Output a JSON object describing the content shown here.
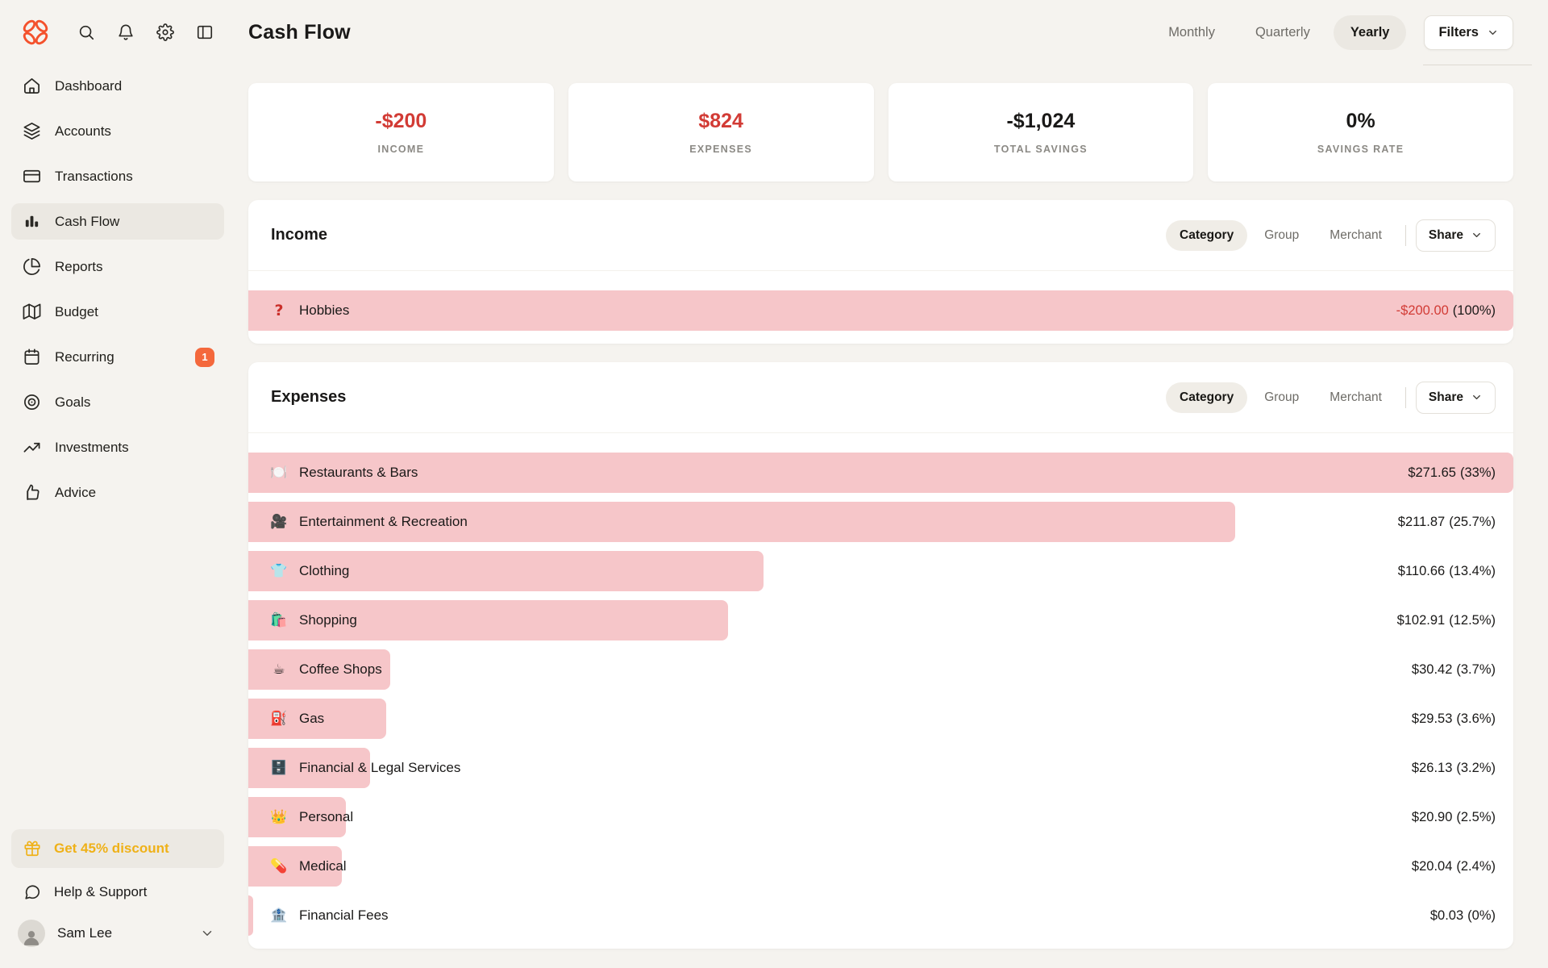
{
  "colors": {
    "accent_orange": "#F4512C",
    "badge_orange": "#F4683C",
    "bar_pink": "#F6C6C9",
    "negative_red": "#D23B35",
    "discount_amber": "#EFB118",
    "page_bg": "#F5F3EF",
    "card_bg": "#FFFFFF"
  },
  "sidebar": {
    "top_icons": [
      {
        "name": "search"
      },
      {
        "name": "bell"
      },
      {
        "name": "gear"
      },
      {
        "name": "layout-panel"
      }
    ],
    "nav": [
      {
        "label": "Dashboard",
        "icon": "home",
        "selected": false
      },
      {
        "label": "Accounts",
        "icon": "layers",
        "selected": false
      },
      {
        "label": "Transactions",
        "icon": "credit-card",
        "selected": false
      },
      {
        "label": "Cash Flow",
        "icon": "bar-chart",
        "selected": true
      },
      {
        "label": "Reports",
        "icon": "pie-chart",
        "selected": false
      },
      {
        "label": "Budget",
        "icon": "map",
        "selected": false
      },
      {
        "label": "Recurring",
        "icon": "calendar",
        "selected": false,
        "badge": "1"
      },
      {
        "label": "Goals",
        "icon": "target",
        "selected": false
      },
      {
        "label": "Investments",
        "icon": "trending-up",
        "selected": false
      },
      {
        "label": "Advice",
        "icon": "thumbs-up",
        "selected": false
      }
    ],
    "discount_label": "Get 45% discount",
    "help_label": "Help & Support",
    "user_name": "Sam Lee"
  },
  "header": {
    "title": "Cash Flow",
    "periods": [
      {
        "label": "Monthly",
        "selected": false
      },
      {
        "label": "Quarterly",
        "selected": false
      },
      {
        "label": "Yearly",
        "selected": true
      }
    ],
    "filters_label": "Filters"
  },
  "summary_cards": [
    {
      "value": "-$200",
      "label": "INCOME",
      "style": "red"
    },
    {
      "value": "$824",
      "label": "EXPENSES",
      "style": "red"
    },
    {
      "value": "-$1,024",
      "label": "TOTAL SAVINGS",
      "style": "dark"
    },
    {
      "value": "0%",
      "label": "SAVINGS RATE",
      "style": "dark"
    }
  ],
  "sections": {
    "income": {
      "title": "Income",
      "tabs": [
        {
          "label": "Category",
          "selected": true
        },
        {
          "label": "Group",
          "selected": false
        },
        {
          "label": "Merchant",
          "selected": false
        }
      ],
      "share_label": "Share",
      "rows": [
        {
          "icon_name": "question-mark-icon",
          "emoji": "",
          "label": "Hobbies",
          "amount": "-$200.00",
          "pct": "(100%)",
          "bar_pct": 100,
          "amount_style": "red"
        }
      ]
    },
    "expenses": {
      "title": "Expenses",
      "tabs": [
        {
          "label": "Category",
          "selected": true
        },
        {
          "label": "Group",
          "selected": false
        },
        {
          "label": "Merchant",
          "selected": false
        }
      ],
      "share_label": "Share",
      "rows": [
        {
          "icon_name": "restaurants-icon",
          "emoji": "🍽️",
          "label": "Restaurants & Bars",
          "amount": "$271.65",
          "pct": "(33%)",
          "bar_pct": 100,
          "amount_style": "dark"
        },
        {
          "icon_name": "entertainment-icon",
          "emoji": "🎥",
          "label": "Entertainment & Recreation",
          "amount": "$211.87",
          "pct": "(25.7%)",
          "bar_pct": 78,
          "amount_style": "dark"
        },
        {
          "icon_name": "clothing-icon",
          "emoji": "👕",
          "label": "Clothing",
          "amount": "$110.66",
          "pct": "(13.4%)",
          "bar_pct": 40.7,
          "amount_style": "dark"
        },
        {
          "icon_name": "shopping-icon",
          "emoji": "🛍️",
          "label": "Shopping",
          "amount": "$102.91",
          "pct": "(12.5%)",
          "bar_pct": 37.9,
          "amount_style": "dark"
        },
        {
          "icon_name": "coffee-icon",
          "emoji": "☕",
          "label": "Coffee Shops",
          "amount": "$30.42",
          "pct": "(3.7%)",
          "bar_pct": 11.2,
          "amount_style": "dark"
        },
        {
          "icon_name": "gas-icon",
          "emoji": "⛽",
          "label": "Gas",
          "amount": "$29.53",
          "pct": "(3.6%)",
          "bar_pct": 10.9,
          "amount_style": "dark"
        },
        {
          "icon_name": "file-cabinet-icon",
          "emoji": "🗄️",
          "label": "Financial & Legal Services",
          "amount": "$26.13",
          "pct": "(3.2%)",
          "bar_pct": 9.6,
          "amount_style": "dark"
        },
        {
          "icon_name": "crown-icon",
          "emoji": "👑",
          "label": "Personal",
          "amount": "$20.90",
          "pct": "(2.5%)",
          "bar_pct": 7.7,
          "amount_style": "dark"
        },
        {
          "icon_name": "pill-icon",
          "emoji": "💊",
          "label": "Medical",
          "amount": "$20.04",
          "pct": "(2.4%)",
          "bar_pct": 7.4,
          "amount_style": "dark"
        },
        {
          "icon_name": "bank-icon",
          "emoji": "🏦",
          "label": "Financial Fees",
          "amount": "$0.03",
          "pct": "(0%)",
          "bar_pct": 0.4,
          "amount_style": "dark"
        }
      ]
    }
  }
}
